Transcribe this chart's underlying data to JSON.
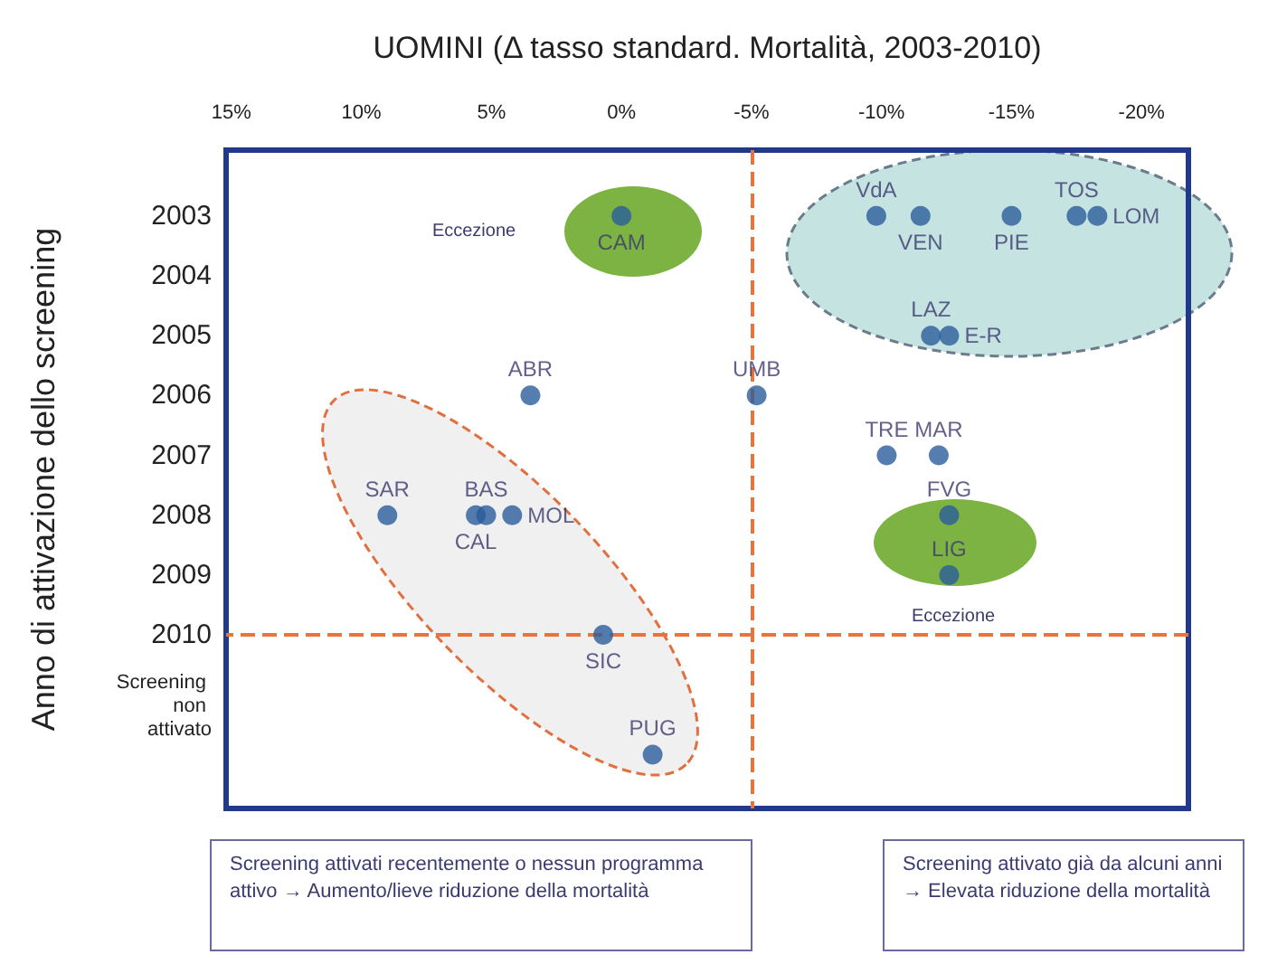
{
  "chart_data": {
    "type": "scatter",
    "xlabel": "UOMINI (Δ tasso standard. Mortalità, 2003-2010)",
    "ylabel": "Anno di attivazione dello screening",
    "x": [
      0,
      -9.8,
      -11.5,
      -15,
      -17.5,
      -18.3,
      -11.9,
      -12.6,
      3.5,
      -5.2,
      -10.2,
      -12.2,
      9,
      5.2,
      5.6,
      4.2,
      -12.6,
      -12.6,
      0.7,
      -1.2
    ],
    "values": [
      2003,
      2003,
      2003,
      2003,
      2003,
      2003,
      2005,
      2005,
      2006,
      2006,
      2007,
      2007,
      2008,
      2008,
      2008,
      2008,
      2008,
      2009,
      2010,
      2012
    ],
    "value_labels": [
      "CAM",
      "VdA",
      "VEN",
      "PIE",
      "TOS",
      "LOM",
      "LAZ",
      "E-R",
      "ABR",
      "UMB",
      "TRE",
      "MAR",
      "SAR",
      "BAS",
      "CAL",
      "MOL",
      "FVG",
      "LIG",
      "SIC",
      "PUG"
    ],
    "color": "#2b5d9b",
    "marker": "circle",
    "xlim": [
      15.2,
      -21.8
    ],
    "xticks": [
      {
        "value": 15,
        "label": "15%"
      },
      {
        "value": 10,
        "label": "10%"
      },
      {
        "value": 5,
        "label": "5%"
      },
      {
        "value": 0,
        "label": "0%"
      },
      {
        "value": -5,
        "label": "-5%"
      },
      {
        "value": -10,
        "label": "-10%"
      },
      {
        "value": -15,
        "label": "-15%"
      },
      {
        "value": -20,
        "label": "-20%"
      }
    ],
    "ylim": [
      2012.9,
      2001.9
    ],
    "yticks": [
      2003,
      2004,
      2005,
      2006,
      2007,
      2008,
      2009,
      2010,
      {
        "value": 2011.2,
        "label": "Screening non attivato"
      }
    ],
    "ref_lines": [
      {
        "axis": "x",
        "value": -5,
        "color": "#e8743b",
        "line_style": "dashed"
      },
      {
        "axis": "y",
        "value": 2010,
        "color": "#e8743b",
        "line_style": "dashed"
      }
    ],
    "annotations": [
      "Eccezione",
      "Eccezione",
      "Screening attivati recentemente o nessun programma attivo → Aumento/lieve riduzione della mortalità",
      "Screening attivato già da alcuni anni → Elevata riduzione della mortalità"
    ]
  }
}
